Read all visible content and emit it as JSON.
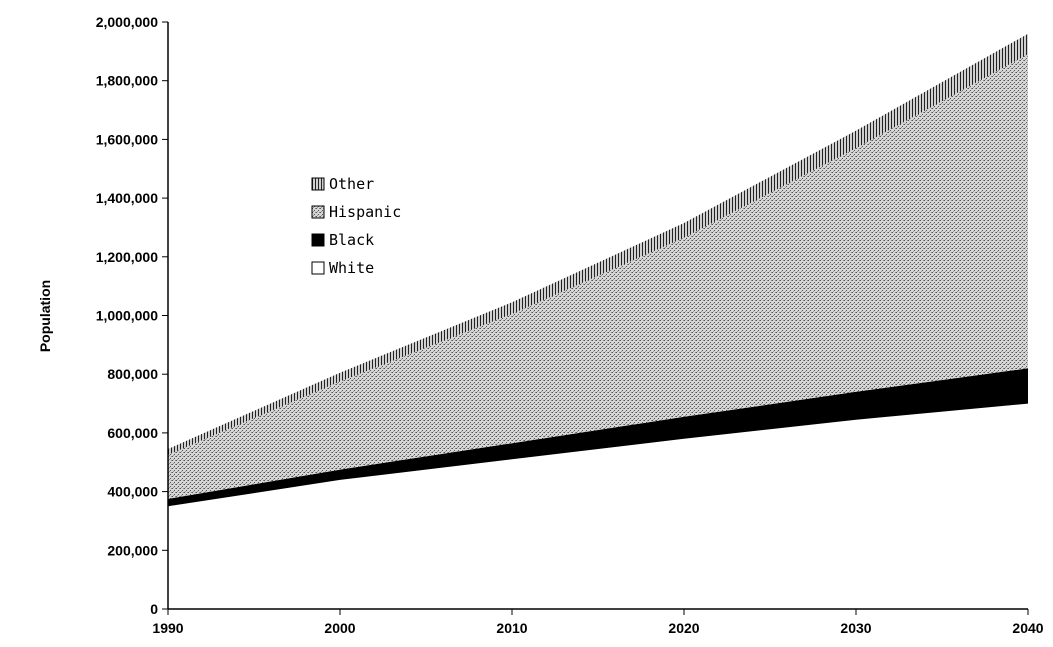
{
  "chart_data": {
    "type": "area",
    "stacked": true,
    "title": "",
    "xlabel": "",
    "ylabel": "Population",
    "x": [
      1990,
      2000,
      2010,
      2020,
      2030,
      2040
    ],
    "xlim": [
      1990,
      2040
    ],
    "ylim": [
      0,
      2000000
    ],
    "x_ticks": [
      "1990",
      "2000",
      "2010",
      "2020",
      "2030",
      "2040"
    ],
    "y_ticks": [
      "0",
      "200,000",
      "400,000",
      "600,000",
      "800,000",
      "1,000,000",
      "1,200,000",
      "1,400,000",
      "1,600,000",
      "1,800,000",
      "2,000,000"
    ],
    "grid": false,
    "legend_position": "upper-left",
    "legend_order": [
      "Other",
      "Hispanic",
      "Black",
      "White"
    ],
    "series": [
      {
        "name": "White",
        "values": [
          350000,
          440000,
          510000,
          580000,
          645000,
          700000
        ],
        "pattern": "white",
        "color": "#ffffff"
      },
      {
        "name": "Black",
        "values": [
          25000,
          35000,
          55000,
          75000,
          95000,
          120000
        ],
        "pattern": "solid",
        "color": "#000000"
      },
      {
        "name": "Hispanic",
        "values": [
          150000,
          300000,
          440000,
          610000,
          830000,
          1070000
        ],
        "pattern": "stipple",
        "color": "#b8b8b8"
      },
      {
        "name": "Other",
        "values": [
          20000,
          30000,
          40000,
          50000,
          60000,
          70000
        ],
        "pattern": "vertical-stripes",
        "color": "#6a6a6a"
      }
    ]
  }
}
